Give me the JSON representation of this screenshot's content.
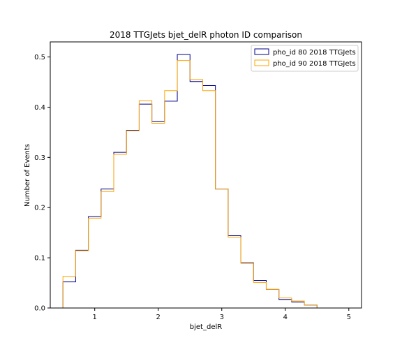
{
  "chart_data": {
    "type": "histogram-step",
    "title": "2018 TTGJets bjet_delR photon ID comparison",
    "xlabel": "bjet_delR",
    "ylabel": "Number of Events",
    "xlim": [
      0.3,
      5.2
    ],
    "ylim": [
      0,
      0.53
    ],
    "xticks": [
      1,
      2,
      3,
      4,
      5
    ],
    "yticks": [
      0.0,
      0.1,
      0.2,
      0.3,
      0.4,
      0.5
    ],
    "grid": false,
    "legend_position": "top-right",
    "bin_edges": [
      0.5,
      0.7,
      0.9,
      1.1,
      1.3,
      1.5,
      1.7,
      1.9,
      2.1,
      2.3,
      2.5,
      2.7,
      2.9,
      3.1,
      3.3,
      3.5,
      3.7,
      3.9,
      4.1,
      4.3,
      4.5,
      4.7,
      4.9
    ],
    "series": [
      {
        "name": "pho_id 80 2018 TTGJets",
        "color": "#00008b",
        "values": [
          0.052,
          0.115,
          0.182,
          0.237,
          0.31,
          0.354,
          0.406,
          0.372,
          0.412,
          0.505,
          0.451,
          0.443,
          0.237,
          0.144,
          0.09,
          0.055,
          0.037,
          0.017,
          0.012,
          0.006,
          0.0,
          0.0
        ]
      },
      {
        "name": "pho_id 90 2018 TTGJets",
        "color": "#ffa500",
        "values": [
          0.063,
          0.114,
          0.179,
          0.232,
          0.306,
          0.353,
          0.413,
          0.368,
          0.433,
          0.493,
          0.455,
          0.433,
          0.237,
          0.141,
          0.089,
          0.051,
          0.037,
          0.02,
          0.014,
          0.006,
          0.0,
          0.0
        ]
      }
    ]
  }
}
